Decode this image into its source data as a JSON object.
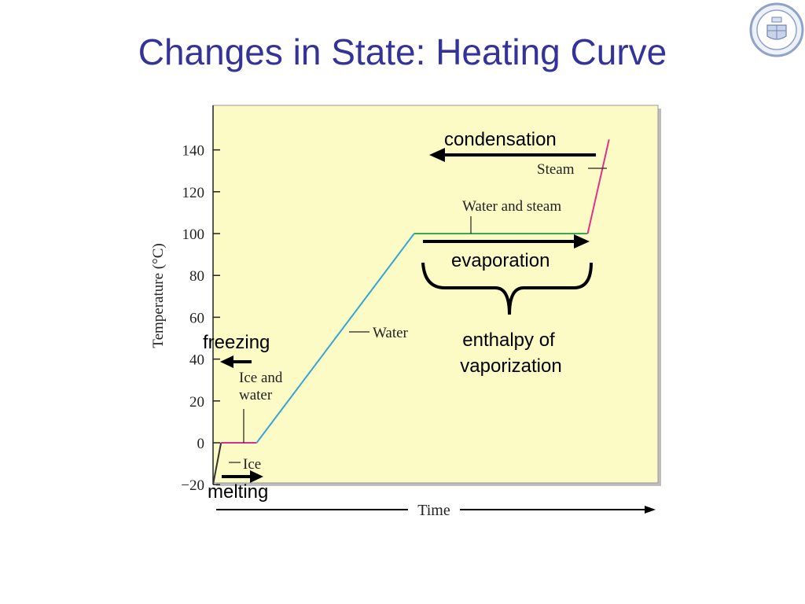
{
  "slide": {
    "title": "Changes in State: Heating Curve"
  },
  "chart_data": {
    "type": "line",
    "title": "",
    "xlabel": "Time",
    "ylabel": "Temperature (°C)",
    "ylim": [
      -20,
      160
    ],
    "y_ticks": [
      -20,
      0,
      20,
      40,
      60,
      80,
      100,
      120,
      140
    ],
    "grid": false,
    "series": [
      {
        "name": "",
        "points": [
          {
            "time": 0.0,
            "temp": -20,
            "phase": "Ice"
          },
          {
            "time": 1.8,
            "temp": 0,
            "phase": "Ice and water"
          },
          {
            "time": 9.8,
            "temp": 0,
            "phase": "Water"
          },
          {
            "time": 45.2,
            "temp": 100,
            "phase": "Water and steam"
          },
          {
            "time": 84.2,
            "temp": 100,
            "phase": "Steam"
          },
          {
            "time": 89.0,
            "temp": 145,
            "phase": "Steam"
          }
        ]
      }
    ],
    "phase_labels": {
      "ice": "Ice",
      "ice_water_1": "Ice and",
      "ice_water_2": "water",
      "water": "Water",
      "water_steam": "Water and steam",
      "steam": "Steam"
    },
    "phase_colors": {
      "ice": "#333333",
      "ice_water": "#cc3399",
      "water": "#33a6d6",
      "water_steam": "#33aa55",
      "steam": "#dd3388"
    },
    "panel_color": "#fcfac5",
    "annotations": {
      "condensation": "condensation",
      "evaporation": "evaporation",
      "enthalpy_1": "enthalpy of",
      "enthalpy_2": "vaporization",
      "freezing": "freezing",
      "melting": "melting"
    }
  }
}
